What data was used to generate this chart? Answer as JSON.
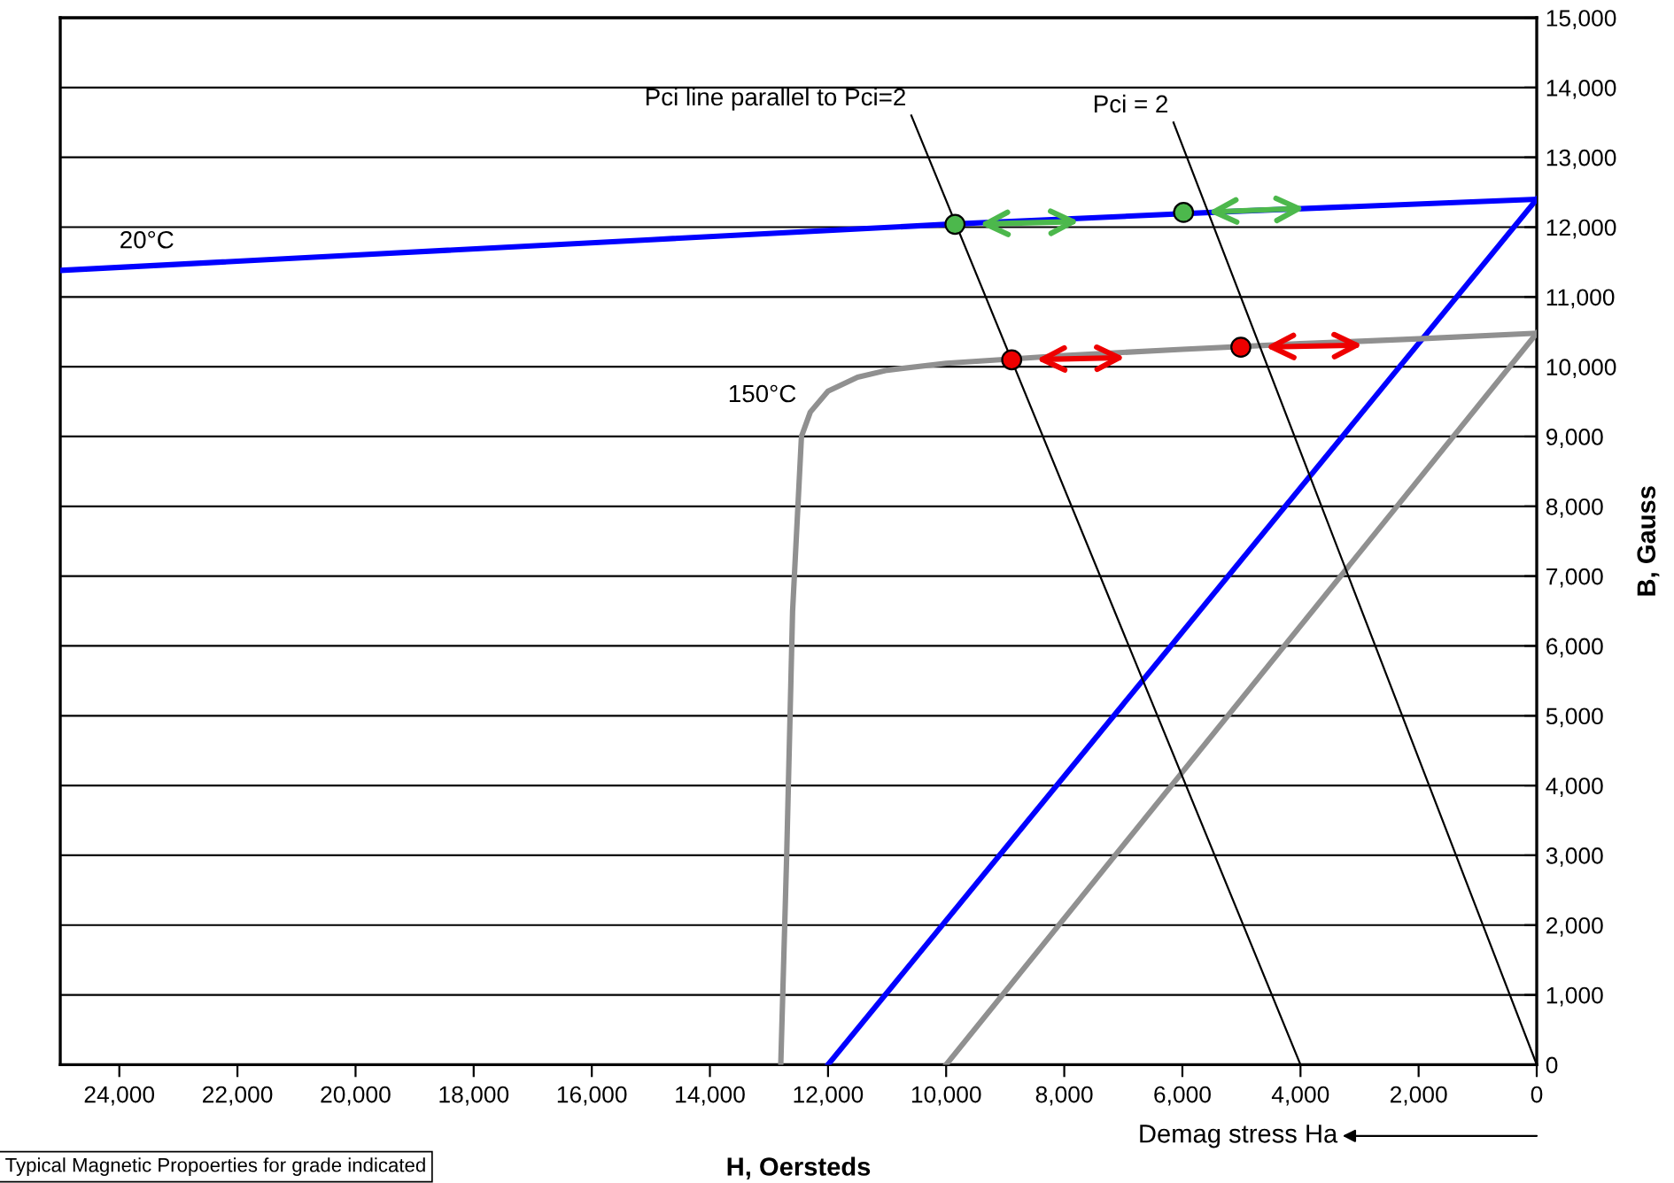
{
  "chart_data": {
    "type": "line",
    "xlabel": "H, Oersteds",
    "ylabel": "B, Gauss",
    "xlim": [
      25000,
      0
    ],
    "ylim": [
      0,
      15000
    ],
    "xticks": [
      {
        "value": 24000,
        "label": "24,000"
      },
      {
        "value": 22000,
        "label": "22,000"
      },
      {
        "value": 20000,
        "label": "20,000"
      },
      {
        "value": 18000,
        "label": "18,000"
      },
      {
        "value": 16000,
        "label": "16,000"
      },
      {
        "value": 14000,
        "label": "14,000"
      },
      {
        "value": 12000,
        "label": "12,000"
      },
      {
        "value": 10000,
        "label": "10,000"
      },
      {
        "value": 8000,
        "label": "8,000"
      },
      {
        "value": 6000,
        "label": "6,000"
      },
      {
        "value": 4000,
        "label": "4,000"
      },
      {
        "value": 2000,
        "label": "2,000"
      },
      0
    ],
    "yticks": [
      0,
      {
        "value": 1000,
        "label": "1,000"
      },
      {
        "value": 2000,
        "label": "2,000"
      },
      {
        "value": 3000,
        "label": "3,000"
      },
      {
        "value": 4000,
        "label": "4,000"
      },
      {
        "value": 5000,
        "label": "5,000"
      },
      {
        "value": 6000,
        "label": "6,000"
      },
      {
        "value": 7000,
        "label": "7,000"
      },
      {
        "value": 8000,
        "label": "8,000"
      },
      {
        "value": 9000,
        "label": "9,000"
      },
      {
        "value": 10000,
        "label": "10,000"
      },
      {
        "value": 11000,
        "label": "11,000"
      },
      {
        "value": 12000,
        "label": "12,000"
      },
      {
        "value": 13000,
        "label": "13,000"
      },
      {
        "value": 14000,
        "label": "14,000"
      },
      {
        "value": 15000,
        "label": "15,000"
      }
    ],
    "grid": "y",
    "marker": "none",
    "series": [
      {
        "color": "#0000ff",
        "x": [
          25000,
          20000,
          15000,
          10000,
          5000,
          0
        ],
        "values": [
          11380,
          11600,
          11820,
          12040,
          12230,
          12400
        ]
      },
      {
        "color": "#0000ff",
        "x": [
          0,
          12000
        ],
        "values": [
          12400,
          0
        ]
      },
      {
        "color": "#909090",
        "x": [
          12800,
          12700,
          12600,
          12450,
          12300,
          12000,
          11500,
          11000,
          10000,
          8000,
          6000,
          4000,
          2000,
          0
        ],
        "values": [
          0,
          3000,
          6500,
          9000,
          9350,
          9650,
          9850,
          9950,
          10050,
          10160,
          10250,
          10330,
          10400,
          10480
        ]
      },
      {
        "color": "#909090",
        "x": [
          0,
          10000
        ],
        "values": [
          10480,
          0
        ]
      },
      {
        "color": "#000000",
        "x": [
          10590,
          4000
        ],
        "values": [
          13600,
          0
        ]
      },
      {
        "color": "#000000",
        "x": [
          6150,
          0
        ],
        "values": [
          13500,
          0
        ]
      },
      {
        "type": "scatter",
        "marker": "circle",
        "x": [
          9850,
          5980
        ],
        "values": [
          12040,
          12210
        ],
        "colors": [
          "#4cb84c",
          "#4cb84c"
        ]
      },
      {
        "type": "scatter",
        "marker": "circle",
        "x": [
          8890,
          5010
        ],
        "values": [
          10100,
          10280
        ],
        "colors": [
          "#ee0000",
          "#ee0000"
        ]
      }
    ],
    "annotations": [
      "20°C",
      {
        "text": "150°C",
        "x": 12450,
        "y": 9350
      },
      {
        "text": "Pci line parallel to Pci=2",
        "x": 10590,
        "y": 13600
      },
      {
        "text": "Pci = 2",
        "x": 6150,
        "y": 13500
      },
      "Demag stress Ha",
      "Typical Magnetic Propoerties for grade indicated"
    ]
  }
}
